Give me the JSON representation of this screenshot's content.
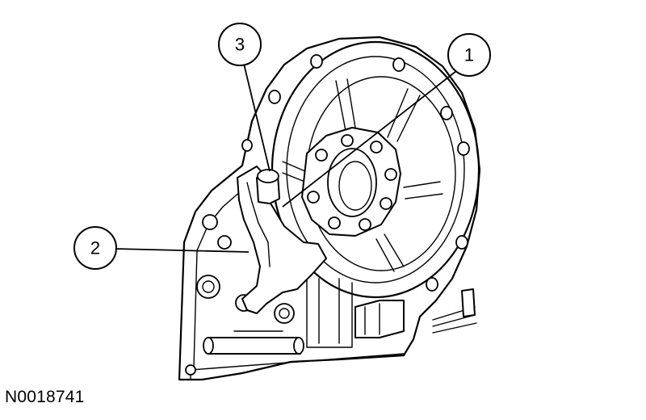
{
  "callouts": [
    {
      "id": "1",
      "label": "1"
    },
    {
      "id": "2",
      "label": "2"
    },
    {
      "id": "3",
      "label": "3"
    }
  ],
  "figure_code": "N0018741",
  "colors": {
    "ink": "#000000",
    "paper": "#ffffff"
  }
}
